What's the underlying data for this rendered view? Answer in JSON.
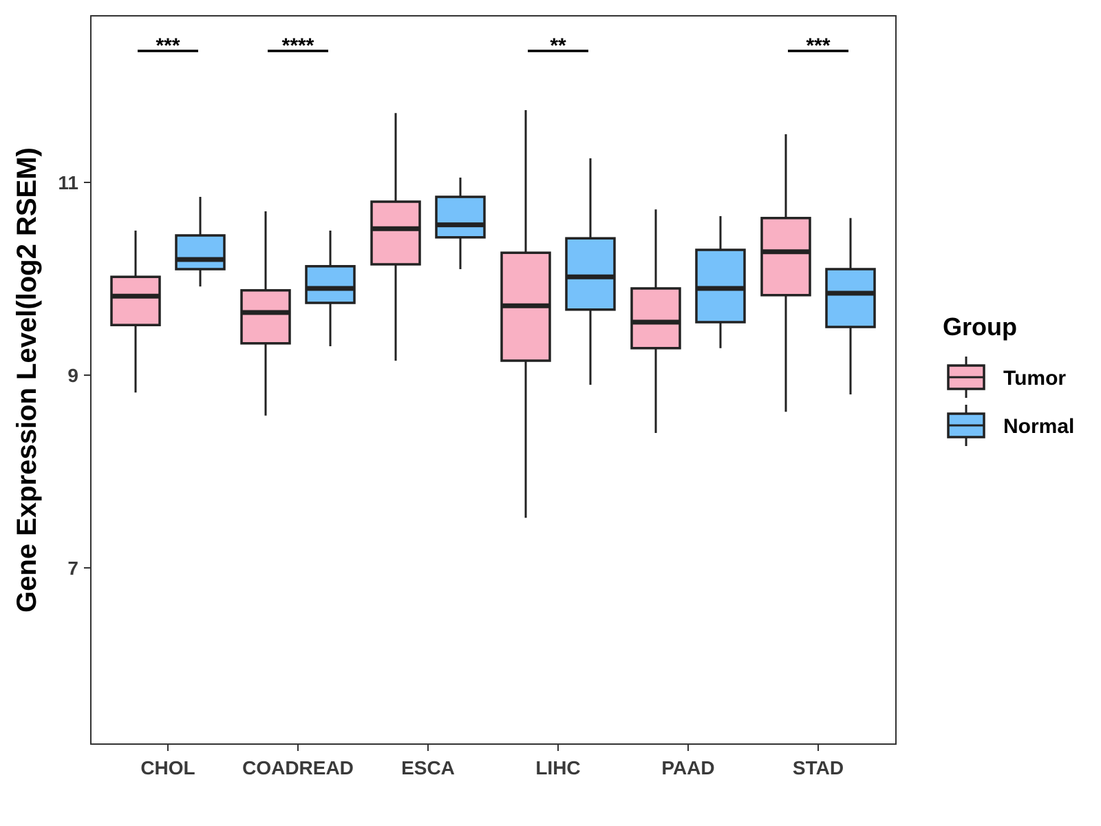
{
  "chart_data": {
    "type": "boxplot",
    "title": "",
    "xlabel": "",
    "ylabel": "Gene Expression Level(log2 RSEM)",
    "ylim": [
      5.2,
      12.75
    ],
    "yticks": [
      7,
      9,
      11
    ],
    "yticklabels": [
      "7",
      "9",
      "11"
    ],
    "grid": false,
    "categories": [
      "CHOL",
      "COADREAD",
      "ESCA",
      "LIHC",
      "PAAD",
      "STAD"
    ],
    "legend": {
      "title": "Group",
      "position": "right",
      "entries": [
        {
          "name": "Tumor",
          "color": "#F9B0C3"
        },
        {
          "name": "Normal",
          "color": "#76C1FA"
        }
      ]
    },
    "series": [
      {
        "name": "Tumor",
        "color": "#F9B0C3",
        "boxes": [
          {
            "min": 8.82,
            "q1": 9.52,
            "median": 9.82,
            "q3": 10.02,
            "max": 10.5
          },
          {
            "min": 8.58,
            "q1": 9.33,
            "median": 9.65,
            "q3": 9.88,
            "max": 10.7
          },
          {
            "min": 9.15,
            "q1": 10.15,
            "median": 10.52,
            "q3": 10.8,
            "max": 11.72
          },
          {
            "min": 7.52,
            "q1": 9.15,
            "median": 9.72,
            "q3": 10.27,
            "max": 11.75
          },
          {
            "min": 8.4,
            "q1": 9.28,
            "median": 9.55,
            "q3": 9.9,
            "max": 10.72
          },
          {
            "min": 8.62,
            "q1": 9.83,
            "median": 10.28,
            "q3": 10.63,
            "max": 11.5
          }
        ]
      },
      {
        "name": "Normal",
        "color": "#76C1FA",
        "boxes": [
          {
            "min": 9.92,
            "q1": 10.1,
            "median": 10.2,
            "q3": 10.45,
            "max": 10.85
          },
          {
            "min": 9.3,
            "q1": 9.75,
            "median": 9.9,
            "q3": 10.13,
            "max": 10.5
          },
          {
            "min": 10.1,
            "q1": 10.43,
            "median": 10.56,
            "q3": 10.85,
            "max": 11.05
          },
          {
            "min": 8.9,
            "q1": 9.68,
            "median": 10.02,
            "q3": 10.42,
            "max": 11.25
          },
          {
            "min": 9.28,
            "q1": 9.55,
            "median": 9.9,
            "q3": 10.3,
            "max": 10.65
          },
          {
            "min": 8.8,
            "q1": 9.5,
            "median": 9.85,
            "q3": 10.1,
            "max": 10.63
          }
        ]
      }
    ],
    "significance": [
      {
        "category": "CHOL",
        "label": "***"
      },
      {
        "category": "COADREAD",
        "label": "****"
      },
      {
        "category": "LIHC",
        "label": "**"
      },
      {
        "category": "STAD",
        "label": "***"
      }
    ]
  }
}
